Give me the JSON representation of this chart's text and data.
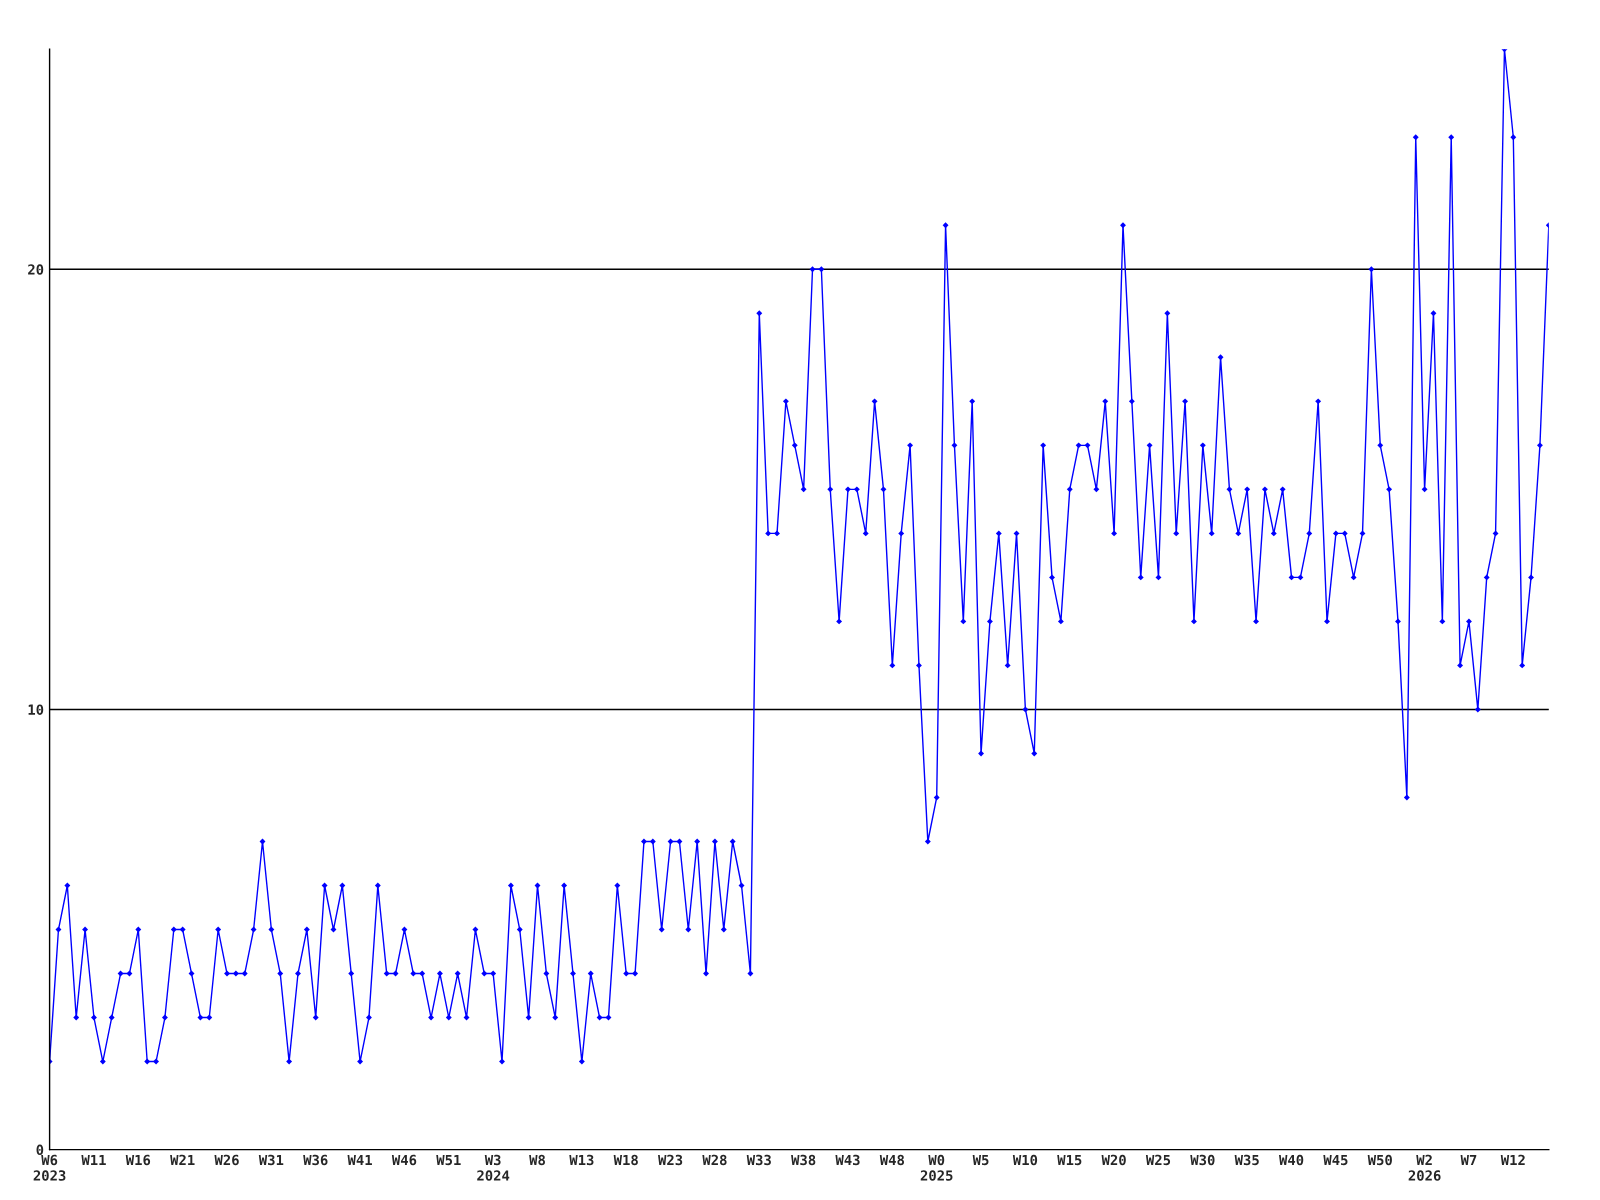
{
  "chart_data": {
    "type": "line",
    "categories": [
      "W6\n2023",
      null,
      null,
      null,
      null,
      "W11",
      null,
      null,
      null,
      null,
      "W16",
      null,
      null,
      null,
      null,
      "W21",
      null,
      null,
      null,
      null,
      "W26",
      null,
      null,
      null,
      null,
      "W31",
      null,
      null,
      null,
      null,
      "W36",
      null,
      null,
      null,
      null,
      "W41",
      null,
      null,
      null,
      null,
      "W46",
      null,
      null,
      null,
      null,
      "W51",
      null,
      null,
      null,
      null,
      "W3\n2024",
      null,
      null,
      null,
      null,
      "W8",
      null,
      null,
      null,
      null,
      "W13",
      null,
      null,
      null,
      null,
      "W18",
      null,
      null,
      null,
      null,
      "W23",
      null,
      null,
      null,
      null,
      "W28",
      null,
      null,
      null,
      null,
      "W33",
      null,
      null,
      null,
      null,
      "W38",
      null,
      null,
      null,
      null,
      "W43",
      null,
      null,
      null,
      null,
      "W48",
      null,
      null,
      null,
      null,
      "W0\n2025",
      null,
      null,
      null,
      null,
      "W5",
      null,
      null,
      null,
      null,
      "W10",
      null,
      null,
      null,
      null,
      "W15",
      null,
      null,
      null,
      null,
      "W20",
      null,
      null,
      null,
      null,
      "W25",
      null,
      null,
      null,
      null,
      "W30",
      null,
      null,
      null,
      null,
      "W35",
      null,
      null,
      null,
      null,
      "W40",
      null,
      null,
      null,
      null,
      "W45",
      null,
      null,
      null,
      null,
      "W50",
      null,
      null,
      null,
      null,
      "W2\n2026",
      null,
      null,
      null,
      null,
      "W7",
      null,
      null,
      null,
      null,
      "W12",
      null,
      null,
      null,
      null
    ],
    "series": [
      {
        "color": "#0000ff",
        "values": [
          2,
          5,
          6,
          3,
          5,
          3,
          2,
          3,
          4,
          4,
          5,
          2,
          2,
          3,
          5,
          5,
          4,
          3,
          3,
          5,
          4,
          4,
          4,
          5,
          7,
          5,
          4,
          2,
          4,
          5,
          3,
          6,
          5,
          6,
          4,
          2,
          3,
          6,
          4,
          4,
          5,
          4,
          4,
          3,
          4,
          3,
          4,
          3,
          5,
          4,
          4,
          2,
          6,
          5,
          3,
          6,
          4,
          3,
          6,
          4,
          2,
          4,
          3,
          3,
          6,
          4,
          4,
          7,
          7,
          5,
          7,
          7,
          5,
          7,
          4,
          7,
          5,
          7,
          6,
          4,
          19,
          14,
          14,
          17,
          16,
          15,
          20,
          20,
          15,
          12,
          15,
          15,
          14,
          17,
          15,
          11,
          14,
          16,
          11,
          7,
          8,
          21,
          16,
          12,
          17,
          9,
          12,
          14,
          11,
          14,
          10,
          9,
          16,
          13,
          12,
          15,
          16,
          16,
          15,
          17,
          14,
          21,
          17,
          13,
          16,
          13,
          19,
          14,
          17,
          12,
          16,
          14,
          18,
          15,
          14,
          15,
          12,
          15,
          14,
          15,
          13,
          13,
          14,
          17,
          12,
          14,
          14,
          13,
          14,
          20,
          16,
          15,
          12,
          8,
          23,
          15,
          19,
          12,
          23,
          11,
          12,
          10,
          13,
          14,
          25,
          23,
          11,
          13,
          16,
          21
        ]
      }
    ],
    "ylim": [
      0,
      25
    ],
    "yticks": [
      0,
      10,
      20
    ],
    "grid": "y",
    "marker": "diamond",
    "line_style": "solid"
  }
}
